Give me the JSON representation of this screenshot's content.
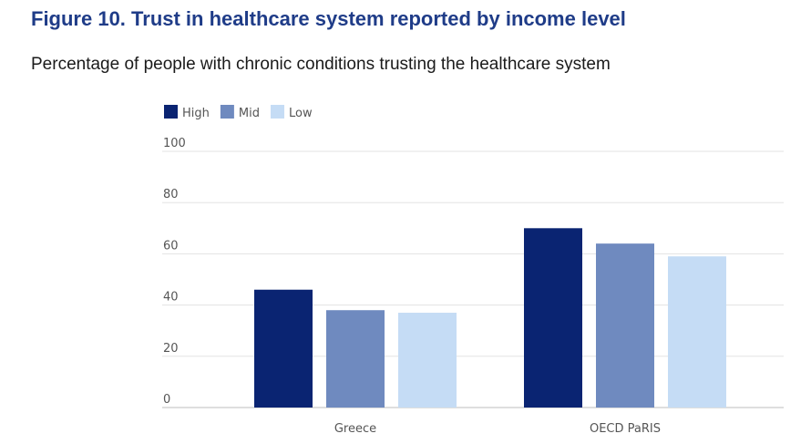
{
  "title": "Figure 10. Trust in healthcare system reported by income level",
  "subtitle": "Percentage of people with chronic conditions trusting the healthcare system",
  "chart_data": {
    "type": "bar",
    "title": "Figure 10. Trust in healthcare system reported by income level",
    "subtitle": "Percentage of people with chronic conditions trusting the healthcare system",
    "categories": [
      "Greece",
      "OECD PaRIS"
    ],
    "series": [
      {
        "name": "High",
        "color": "#0a2472",
        "values": [
          46,
          70
        ]
      },
      {
        "name": "Mid",
        "color": "#6f8abf",
        "values": [
          38,
          64
        ]
      },
      {
        "name": "Low",
        "color": "#c5dcf5",
        "values": [
          37,
          59
        ]
      }
    ],
    "xlabel": "",
    "ylabel": "",
    "ylim": [
      0,
      100
    ],
    "yticks": [
      0,
      20,
      40,
      60,
      80,
      100
    ],
    "grid": true,
    "legend_position": "top-left"
  }
}
